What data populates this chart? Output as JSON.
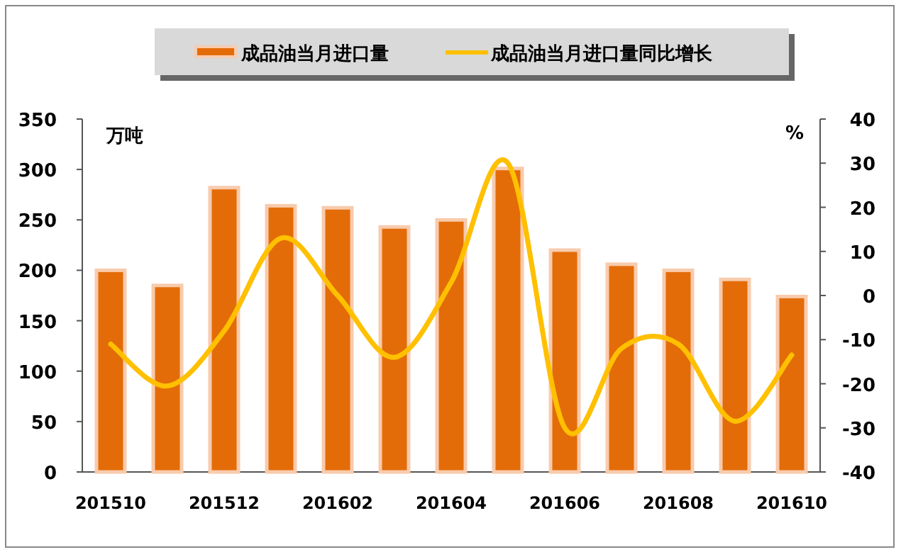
{
  "chart_data": {
    "type": "bar",
    "categories": [
      "201510",
      null,
      "201512",
      null,
      "201602",
      null,
      "201604",
      null,
      "201606",
      null,
      "201608",
      null,
      "201610"
    ],
    "series": [
      {
        "name": "成品油当月进口量",
        "color": "#e36c09",
        "values": [
          200,
          185,
          282,
          264,
          262,
          243,
          250,
          301,
          220,
          206,
          200,
          191,
          174
        ]
      },
      {
        "name": "成品油当月进口量同比增长",
        "color": "#ffc000",
        "type": "line",
        "axis": "y2",
        "values": [
          -11,
          -20.5,
          -8,
          13,
          0,
          -14,
          3,
          30,
          -30,
          -12,
          -11,
          -28.5,
          -13.5
        ]
      }
    ],
    "ylabel": "万吨",
    "y2label": "%",
    "ylim": [
      0,
      350
    ],
    "yticks": [
      0,
      50,
      100,
      150,
      200,
      250,
      300,
      350
    ],
    "y2lim": [
      -40,
      40
    ],
    "y2ticks": [
      -40,
      -30,
      -20,
      -10,
      0,
      10,
      20,
      30,
      40
    ],
    "legend": "top",
    "grid": false
  }
}
